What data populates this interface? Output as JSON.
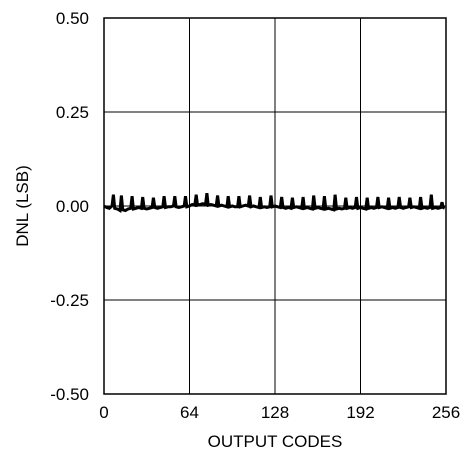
{
  "chart_data": {
    "type": "line",
    "title": "",
    "xlabel": "OUTPUT CODES",
    "ylabel": "DNL (LSB)",
    "xlim": [
      0,
      256
    ],
    "ylim": [
      -0.5,
      0.5
    ],
    "x_ticks": [
      0,
      64,
      128,
      192,
      256
    ],
    "x_tick_labels": [
      "0",
      "64",
      "128",
      "192",
      "256"
    ],
    "y_ticks": [
      0.5,
      0.25,
      0.0,
      -0.25,
      -0.5
    ],
    "y_tick_labels": [
      "0.50",
      "0.25",
      "0.00",
      "-0.25",
      "-0.50"
    ],
    "grid": true,
    "legend": "none",
    "series": [
      {
        "color": "#000000",
        "x": [
          0,
          2,
          4,
          6,
          7,
          8,
          10,
          12,
          13,
          14,
          16,
          18,
          20,
          21,
          22,
          24,
          26,
          28,
          29,
          30,
          32,
          34,
          36,
          37,
          38,
          40,
          42,
          44,
          45,
          46,
          48,
          50,
          52,
          53,
          54,
          56,
          58,
          60,
          61,
          62,
          64,
          66,
          68,
          69,
          70,
          72,
          74,
          76,
          77,
          78,
          80,
          82,
          84,
          85,
          86,
          88,
          90,
          92,
          93,
          94,
          96,
          98,
          100,
          101,
          102,
          104,
          106,
          108,
          109,
          110,
          112,
          114,
          116,
          117,
          118,
          120,
          122,
          124,
          125,
          126,
          128,
          130,
          132,
          133,
          134,
          136,
          138,
          140,
          141,
          142,
          144,
          146,
          148,
          149,
          150,
          152,
          154,
          156,
          157,
          158,
          160,
          162,
          164,
          165,
          166,
          168,
          170,
          172,
          173,
          174,
          176,
          178,
          180,
          181,
          182,
          184,
          186,
          188,
          189,
          190,
          192,
          194,
          196,
          197,
          198,
          200,
          202,
          204,
          205,
          206,
          208,
          210,
          212,
          213,
          214,
          216,
          218,
          220,
          221,
          222,
          224,
          226,
          228,
          229,
          230,
          232,
          234,
          236,
          237,
          238,
          240,
          242,
          244,
          245,
          246,
          248,
          250,
          252,
          253,
          254,
          255
        ],
        "y": [
          0.0,
          -0.004,
          -0.006,
          0.0,
          0.03,
          -0.006,
          -0.008,
          -0.012,
          0.028,
          -0.01,
          -0.012,
          -0.008,
          -0.006,
          0.026,
          -0.008,
          -0.006,
          -0.004,
          -0.006,
          0.024,
          -0.006,
          -0.008,
          -0.006,
          -0.004,
          0.022,
          -0.004,
          -0.006,
          -0.004,
          -0.002,
          0.026,
          -0.004,
          -0.002,
          -0.002,
          0.0,
          0.026,
          -0.002,
          -0.004,
          -0.002,
          0.0,
          0.026,
          -0.002,
          0.0,
          0.004,
          0.002,
          0.03,
          0.002,
          0.004,
          0.006,
          0.004,
          0.034,
          0.002,
          0.004,
          0.002,
          0.0,
          0.028,
          0.0,
          0.002,
          0.0,
          -0.002,
          0.026,
          -0.002,
          0.0,
          -0.002,
          -0.002,
          0.026,
          -0.002,
          0.0,
          0.002,
          0.0,
          0.028,
          -0.002,
          0.0,
          -0.002,
          -0.004,
          0.024,
          -0.004,
          -0.002,
          -0.004,
          -0.002,
          0.028,
          -0.002,
          0.0,
          -0.002,
          -0.004,
          0.024,
          -0.004,
          -0.006,
          -0.004,
          -0.006,
          0.022,
          -0.004,
          -0.002,
          -0.004,
          -0.006,
          0.024,
          -0.006,
          -0.004,
          -0.006,
          -0.008,
          0.028,
          -0.006,
          -0.004,
          -0.006,
          -0.008,
          0.026,
          -0.008,
          -0.006,
          -0.008,
          -0.01,
          0.03,
          -0.008,
          -0.006,
          -0.008,
          -0.006,
          0.022,
          -0.006,
          -0.004,
          -0.006,
          -0.004,
          0.024,
          -0.006,
          -0.004,
          -0.006,
          -0.008,
          0.022,
          -0.006,
          -0.004,
          -0.006,
          -0.004,
          0.024,
          -0.004,
          -0.002,
          -0.004,
          -0.006,
          0.022,
          -0.006,
          -0.004,
          -0.006,
          -0.004,
          0.024,
          -0.004,
          -0.006,
          -0.004,
          -0.002,
          0.022,
          -0.004,
          -0.002,
          -0.004,
          -0.006,
          0.024,
          -0.006,
          -0.004,
          -0.006,
          -0.004,
          0.03,
          -0.006,
          -0.004,
          -0.006,
          -0.004,
          0.01,
          -0.004,
          -0.006
        ]
      }
    ]
  }
}
